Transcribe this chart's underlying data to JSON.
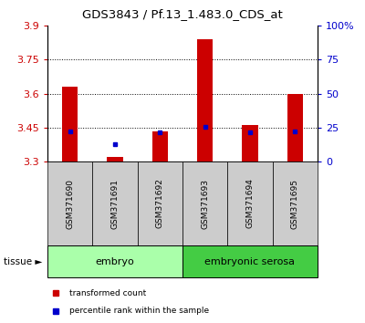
{
  "title": "GDS3843 / Pf.13_1.483.0_CDS_at",
  "samples": [
    "GSM371690",
    "GSM371691",
    "GSM371692",
    "GSM371693",
    "GSM371694",
    "GSM371695"
  ],
  "red_values": [
    3.63,
    3.32,
    3.435,
    3.84,
    3.46,
    3.6
  ],
  "blue_values": [
    3.435,
    3.375,
    3.43,
    3.455,
    3.43,
    3.435
  ],
  "ylim_left": [
    3.3,
    3.9
  ],
  "ylim_right": [
    0,
    100
  ],
  "yticks_left": [
    3.3,
    3.45,
    3.6,
    3.75,
    3.9
  ],
  "yticks_right": [
    0,
    25,
    50,
    75,
    100
  ],
  "ytick_labels_left": [
    "3.3",
    "3.45",
    "3.6",
    "3.75",
    "3.9"
  ],
  "ytick_labels_right": [
    "0",
    "25",
    "50",
    "75",
    "100%"
  ],
  "grid_lines": [
    3.45,
    3.6,
    3.75
  ],
  "groups": [
    {
      "label": "embryo",
      "samples": [
        0,
        1,
        2
      ],
      "color": "#aaffaa"
    },
    {
      "label": "embryonic serosa",
      "samples": [
        3,
        4,
        5
      ],
      "color": "#44cc44"
    }
  ],
  "tissue_label": "tissue ►",
  "legend_items": [
    {
      "label": "transformed count",
      "color": "#cc0000"
    },
    {
      "label": "percentile rank within the sample",
      "color": "#0000cc"
    }
  ],
  "bar_color": "#cc0000",
  "dot_color": "#0000cc",
  "left_tick_color": "#cc0000",
  "right_tick_color": "#0000cc",
  "bar_width": 0.35,
  "bar_bottom": 3.3,
  "sample_box_color": "#cccccc",
  "fig_bg": "#ffffff"
}
